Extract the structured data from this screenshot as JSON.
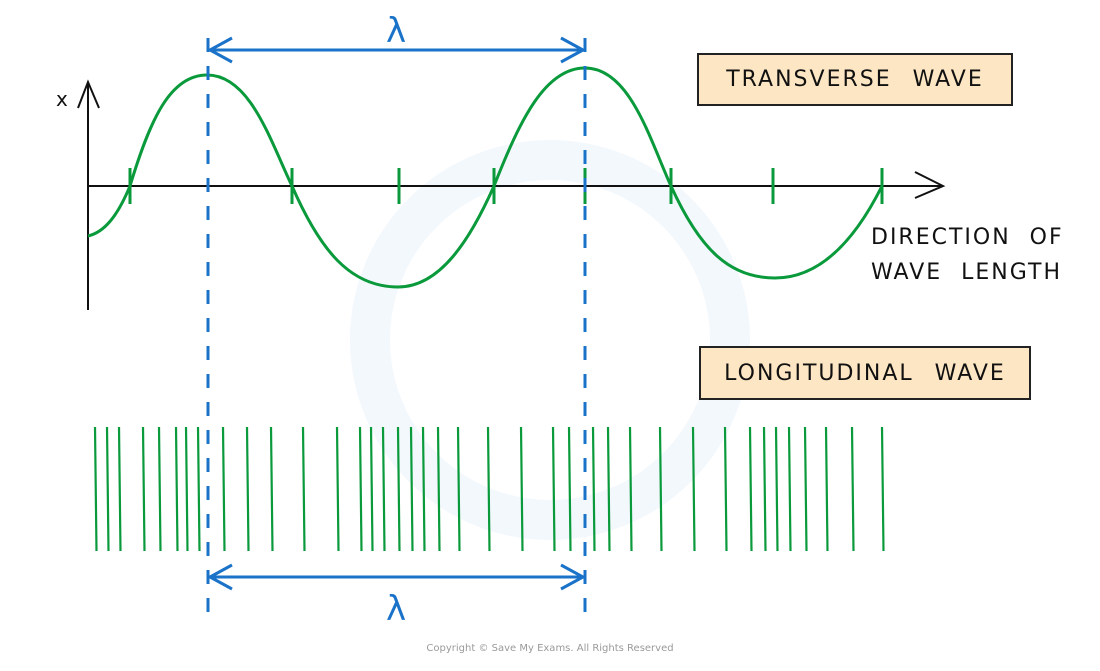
{
  "labels": {
    "transverse": "TRANSVERSE WAVE",
    "longitudinal": "LONGITUDINAL WAVE",
    "direction_line1": "DIRECTION OF",
    "direction_line2": "WAVE LENGTH",
    "y_axis": "x",
    "wavelength_top": "λ",
    "wavelength_bottom": "λ"
  },
  "copyright": "Copyright © Save My Exams. All Rights Reserved",
  "colors": {
    "wave": "#0a9a3c",
    "wavelength": "#1a73c8",
    "axis": "#111111",
    "label_box": "#fde6c3"
  }
}
